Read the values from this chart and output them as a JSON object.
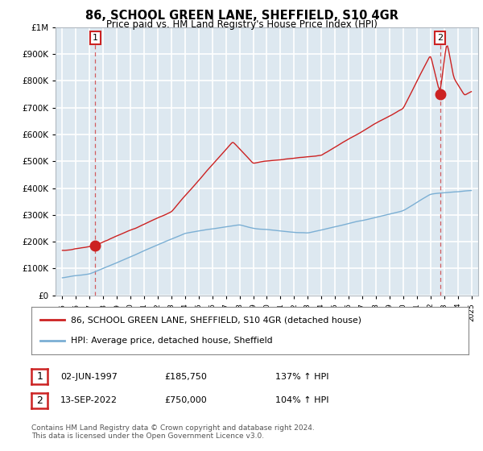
{
  "title": "86, SCHOOL GREEN LANE, SHEFFIELD, S10 4GR",
  "subtitle": "Price paid vs. HM Land Registry's House Price Index (HPI)",
  "legend_line1": "86, SCHOOL GREEN LANE, SHEFFIELD, S10 4GR (detached house)",
  "legend_line2": "HPI: Average price, detached house, Sheffield",
  "transaction1_date": "02-JUN-1997",
  "transaction1_price": "£185,750",
  "transaction1_hpi": "137% ↑ HPI",
  "transaction2_date": "13-SEP-2022",
  "transaction2_price": "£750,000",
  "transaction2_hpi": "104% ↑ HPI",
  "footer": "Contains HM Land Registry data © Crown copyright and database right 2024.\nThis data is licensed under the Open Government Licence v3.0.",
  "red_line_color": "#cc2222",
  "blue_line_color": "#7bafd4",
  "plot_bg_color": "#dde8f0",
  "grid_color": "#ffffff",
  "ylim": [
    0,
    1000000
  ],
  "xlim_start": 1994.5,
  "xlim_end": 2025.5,
  "t1_x": 1997.42,
  "t1_y": 185750,
  "t2_x": 2022.7,
  "t2_y": 750000
}
